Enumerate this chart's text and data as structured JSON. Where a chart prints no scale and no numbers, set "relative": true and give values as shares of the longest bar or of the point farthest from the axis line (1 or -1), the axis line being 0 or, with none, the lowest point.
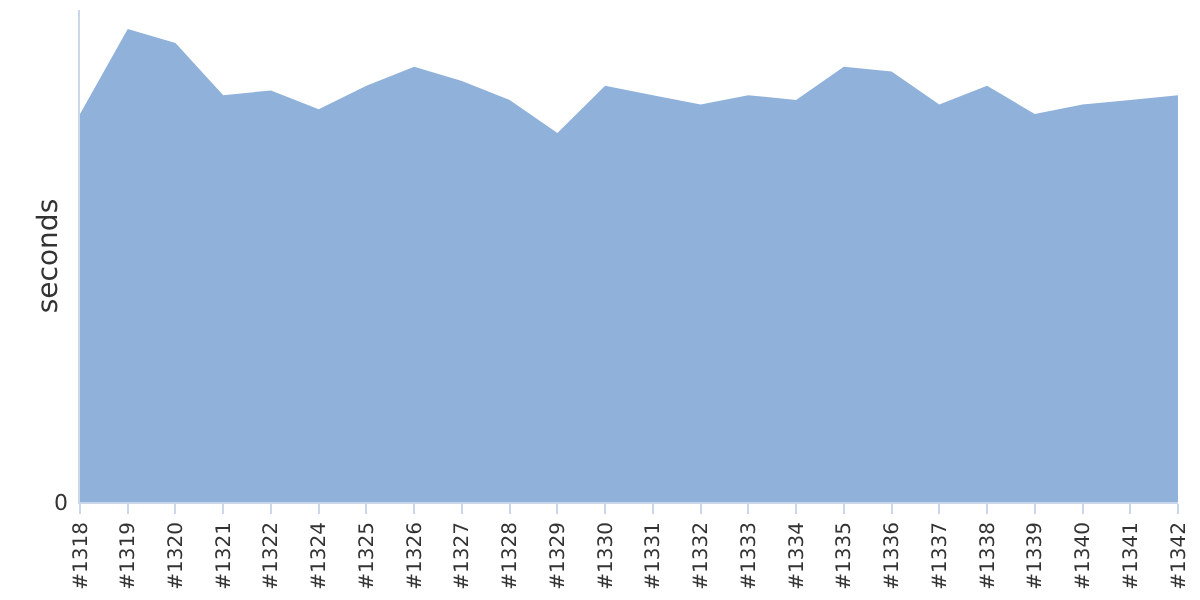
{
  "chart_data": {
    "type": "area",
    "relative": true,
    "ylabel": "seconds",
    "color": "#8fb1da",
    "categories": [
      "#1318",
      "#1319",
      "#1320",
      "#1321",
      "#1322",
      "#1324",
      "#1325",
      "#1326",
      "#1327",
      "#1328",
      "#1329",
      "#1330",
      "#1331",
      "#1332",
      "#1333",
      "#1334",
      "#1335",
      "#1336",
      "#1337",
      "#1338",
      "#1339",
      "#1340",
      "#1341",
      "#1342"
    ],
    "values": [
      0.82,
      1,
      0.97,
      0.86,
      0.87,
      0.83,
      0.88,
      0.92,
      0.89,
      0.85,
      0.78,
      0.88,
      0.86,
      0.84,
      0.86,
      0.85,
      0.92,
      0.91,
      0.84,
      0.88,
      0.82,
      0.84,
      0.85,
      0.86
    ],
    "annotations": [
      "0"
    ]
  }
}
